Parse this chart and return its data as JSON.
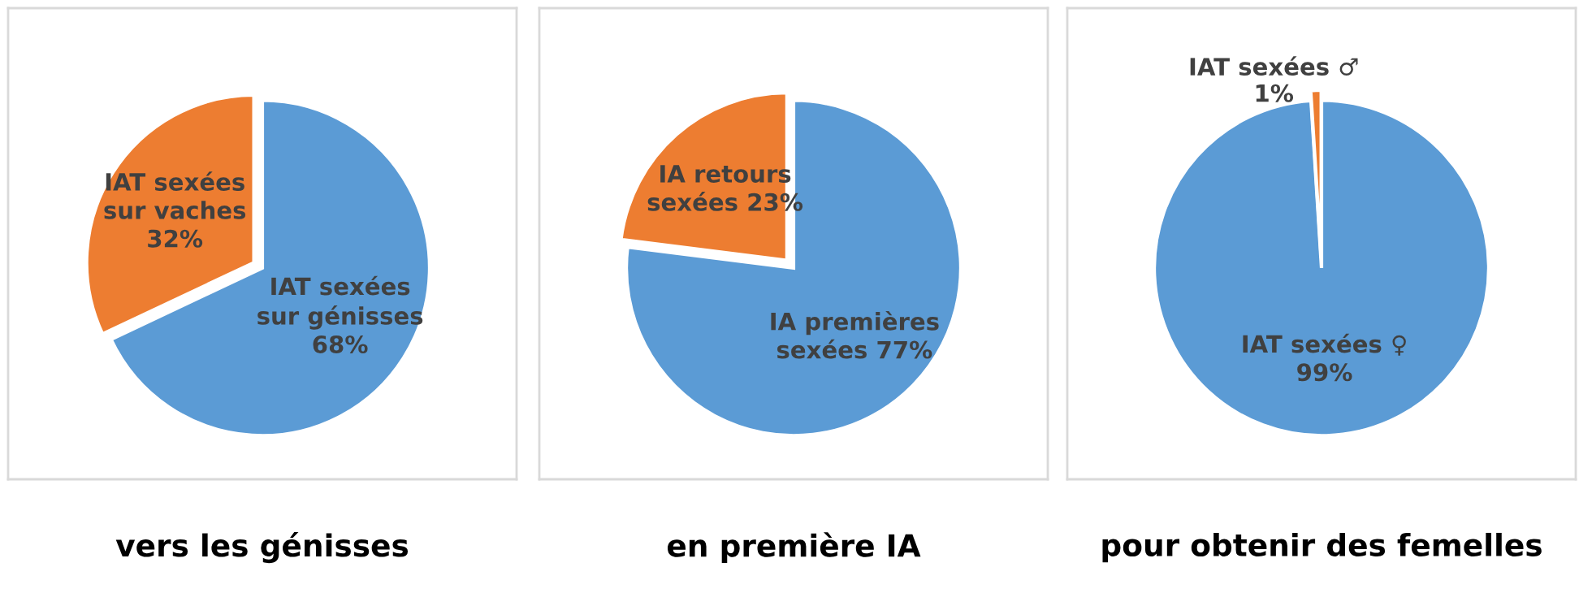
{
  "chart_data": [
    {
      "type": "pie",
      "title": "vers les génisses",
      "categories": [
        "IAT sexées\nsur génisses",
        "IAT sexées\nsur vaches"
      ],
      "values": [
        68,
        32
      ],
      "colors": [
        "#5b9bd5",
        "#ed7d31"
      ],
      "value_labels": [
        "68%",
        "32%"
      ]
    },
    {
      "type": "pie",
      "title": "en première IA",
      "categories": [
        "IA premières\nsexées",
        "IA retours\nsexées"
      ],
      "values": [
        77,
        23
      ],
      "colors": [
        "#5b9bd5",
        "#ed7d31"
      ],
      "value_labels": [
        "77%",
        "23%"
      ]
    },
    {
      "type": "pie",
      "title": "pour obtenir des femelles",
      "categories": [
        "IAT sexées ♀",
        "IAT sexées ♂"
      ],
      "values": [
        99,
        1
      ],
      "colors": [
        "#5b9bd5",
        "#ed7d31"
      ],
      "value_labels": [
        "99%",
        "1%"
      ]
    }
  ]
}
